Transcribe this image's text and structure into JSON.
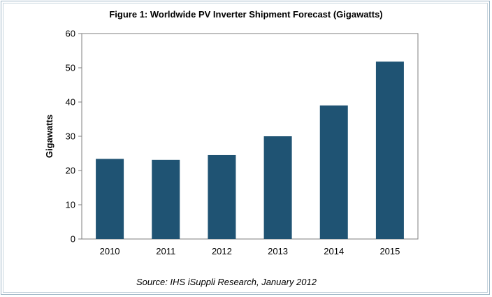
{
  "chart_data": {
    "type": "bar",
    "title": "Figure 1: Worldwide PV Inverter Shipment Forecast (Gigawatts)",
    "ylabel": "Gigawatts",
    "xlabel": "",
    "categories": [
      "2010",
      "2011",
      "2012",
      "2013",
      "2014",
      "2015"
    ],
    "values": [
      23.4,
      23.1,
      24.5,
      30.0,
      39.0,
      51.8
    ],
    "ylim": [
      0,
      60
    ],
    "yticks": [
      "0",
      "10",
      "20",
      "30",
      "40",
      "50",
      "60"
    ],
    "grid": false,
    "legend": "none",
    "bar_color": "#1f5373",
    "source": "Source: IHS iSuppli Research, January 2012"
  }
}
